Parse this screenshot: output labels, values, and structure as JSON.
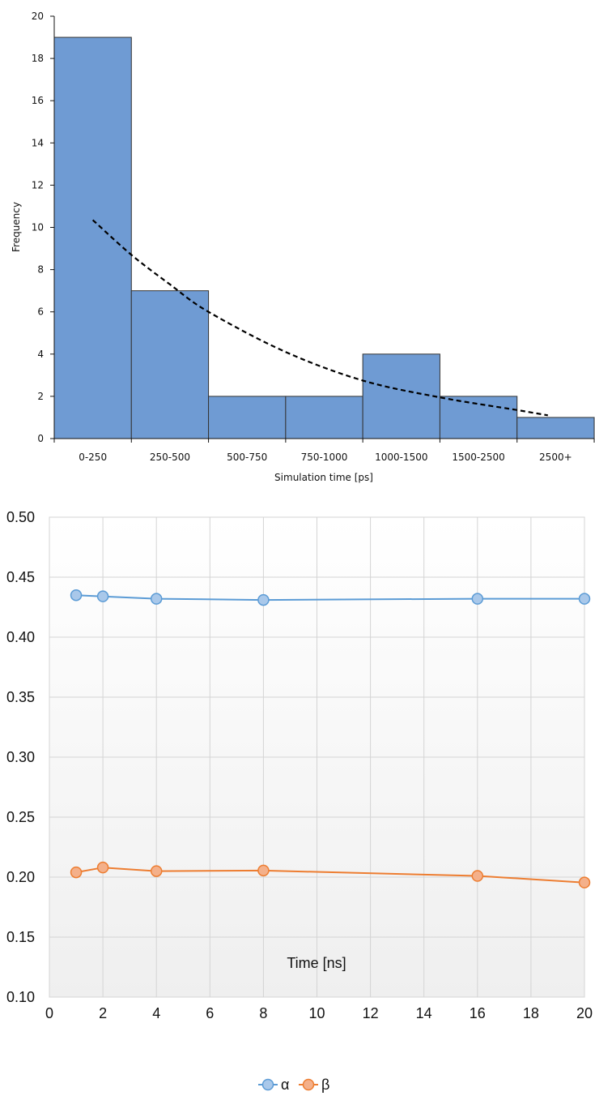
{
  "chart_data": [
    {
      "type": "bar",
      "subtype": "histogram",
      "categories": [
        "0-250",
        "250-500",
        "500-750",
        "750-1000",
        "1000-1500",
        "1500-2500",
        "2500+"
      ],
      "values": [
        19,
        7,
        2,
        2,
        4,
        2,
        1
      ],
      "xlabel": "Simulation time [ps]",
      "ylabel": "Frequency",
      "ylim": [
        0,
        20
      ],
      "yticks": [
        0,
        2,
        4,
        6,
        8,
        10,
        12,
        14,
        16,
        18,
        20
      ],
      "grid": false,
      "bar_color": "#6f9bd3",
      "trendline": {
        "style": "dashed",
        "kind": "exponential",
        "color": "#000000",
        "points": [
          {
            "x": 0.5,
            "y": 10.35
          },
          {
            "x": 1.0,
            "y": 8.7
          },
          {
            "x": 1.5,
            "y": 7.3
          },
          {
            "x": 2.0,
            "y": 6.0
          },
          {
            "x": 3.0,
            "y": 4.1
          },
          {
            "x": 4.0,
            "y": 2.75
          },
          {
            "x": 5.0,
            "y": 1.95
          },
          {
            "x": 6.0,
            "y": 1.35
          },
          {
            "x": 6.4,
            "y": 1.1
          }
        ]
      }
    },
    {
      "type": "line",
      "xlabel": "Time [ns]",
      "ylabel": "",
      "xlim": [
        0,
        20
      ],
      "ylim": [
        0.1,
        0.5
      ],
      "xticks": [
        0,
        2,
        4,
        6,
        8,
        10,
        12,
        14,
        16,
        18,
        20
      ],
      "yticks": [
        "0.10",
        "0.15",
        "0.20",
        "0.25",
        "0.30",
        "0.35",
        "0.40",
        "0.45",
        "0.50"
      ],
      "grid": true,
      "legend": "bottom",
      "series": [
        {
          "name": "α",
          "color": "#5b9bd5",
          "marker_fill": "#a9c8ea",
          "x": [
            1,
            2,
            4,
            8,
            16,
            20
          ],
          "y": [
            0.435,
            0.434,
            0.432,
            0.431,
            0.432,
            0.432
          ]
        },
        {
          "name": "β",
          "color": "#ed7d31",
          "marker_fill": "#f4b08a",
          "x": [
            1,
            2,
            4,
            8,
            16,
            20
          ],
          "y": [
            0.204,
            0.208,
            0.205,
            0.2055,
            0.201,
            0.1955
          ]
        }
      ]
    }
  ]
}
